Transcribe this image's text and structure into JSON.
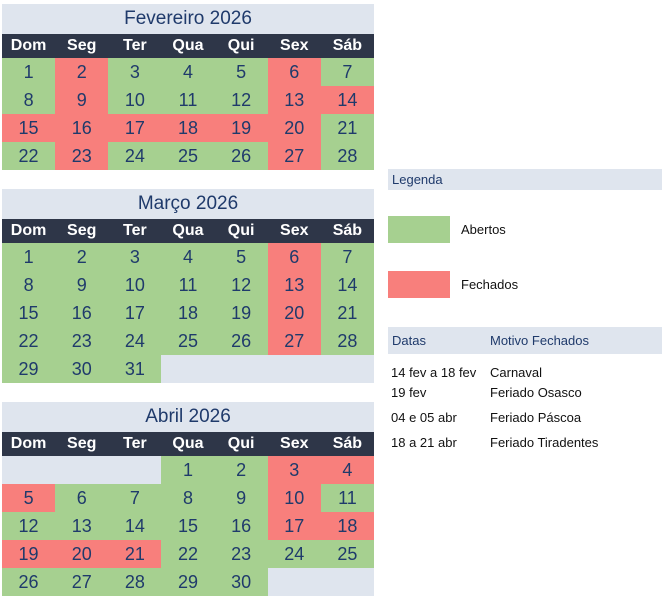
{
  "weekdays": [
    "Dom",
    "Seg",
    "Ter",
    "Qua",
    "Qui",
    "Sex",
    "Sáb"
  ],
  "colors": {
    "open": "#a6d090",
    "closed": "#f87f7c",
    "header_bg": "#2e3648",
    "title_bg": "#dfe5ee",
    "text": "#1f3a6b"
  },
  "calendars": [
    {
      "title": "Fevereiro 2026",
      "cells": [
        {
          "day": "1",
          "status": "open"
        },
        {
          "day": "2",
          "status": "closed"
        },
        {
          "day": "3",
          "status": "open"
        },
        {
          "day": "4",
          "status": "open"
        },
        {
          "day": "5",
          "status": "open"
        },
        {
          "day": "6",
          "status": "closed"
        },
        {
          "day": "7",
          "status": "open"
        },
        {
          "day": "8",
          "status": "open"
        },
        {
          "day": "9",
          "status": "closed"
        },
        {
          "day": "10",
          "status": "open"
        },
        {
          "day": "11",
          "status": "open"
        },
        {
          "day": "12",
          "status": "open"
        },
        {
          "day": "13",
          "status": "closed"
        },
        {
          "day": "14",
          "status": "closed"
        },
        {
          "day": "15",
          "status": "closed"
        },
        {
          "day": "16",
          "status": "closed"
        },
        {
          "day": "17",
          "status": "closed"
        },
        {
          "day": "18",
          "status": "closed"
        },
        {
          "day": "19",
          "status": "closed"
        },
        {
          "day": "20",
          "status": "closed"
        },
        {
          "day": "21",
          "status": "open"
        },
        {
          "day": "22",
          "status": "open"
        },
        {
          "day": "23",
          "status": "closed"
        },
        {
          "day": "24",
          "status": "open"
        },
        {
          "day": "25",
          "status": "open"
        },
        {
          "day": "26",
          "status": "open"
        },
        {
          "day": "27",
          "status": "closed"
        },
        {
          "day": "28",
          "status": "open"
        }
      ]
    },
    {
      "title": "Março 2026",
      "cells": [
        {
          "day": "1",
          "status": "open"
        },
        {
          "day": "2",
          "status": "open"
        },
        {
          "day": "3",
          "status": "open"
        },
        {
          "day": "4",
          "status": "open"
        },
        {
          "day": "5",
          "status": "open"
        },
        {
          "day": "6",
          "status": "closed"
        },
        {
          "day": "7",
          "status": "open"
        },
        {
          "day": "8",
          "status": "open"
        },
        {
          "day": "9",
          "status": "open"
        },
        {
          "day": "10",
          "status": "open"
        },
        {
          "day": "11",
          "status": "open"
        },
        {
          "day": "12",
          "status": "open"
        },
        {
          "day": "13",
          "status": "closed"
        },
        {
          "day": "14",
          "status": "open"
        },
        {
          "day": "15",
          "status": "open"
        },
        {
          "day": "16",
          "status": "open"
        },
        {
          "day": "17",
          "status": "open"
        },
        {
          "day": "18",
          "status": "open"
        },
        {
          "day": "19",
          "status": "open"
        },
        {
          "day": "20",
          "status": "closed"
        },
        {
          "day": "21",
          "status": "open"
        },
        {
          "day": "22",
          "status": "open"
        },
        {
          "day": "23",
          "status": "open"
        },
        {
          "day": "24",
          "status": "open"
        },
        {
          "day": "25",
          "status": "open"
        },
        {
          "day": "26",
          "status": "open"
        },
        {
          "day": "27",
          "status": "closed"
        },
        {
          "day": "28",
          "status": "open"
        },
        {
          "day": "29",
          "status": "open"
        },
        {
          "day": "30",
          "status": "open"
        },
        {
          "day": "31",
          "status": "open"
        },
        {
          "day": "",
          "status": "empty"
        },
        {
          "day": "",
          "status": "empty"
        },
        {
          "day": "",
          "status": "empty"
        },
        {
          "day": "",
          "status": "empty"
        }
      ]
    },
    {
      "title": "Abril 2026",
      "cells": [
        {
          "day": "",
          "status": "empty"
        },
        {
          "day": "",
          "status": "empty"
        },
        {
          "day": "",
          "status": "empty"
        },
        {
          "day": "1",
          "status": "open"
        },
        {
          "day": "2",
          "status": "open"
        },
        {
          "day": "3",
          "status": "closed"
        },
        {
          "day": "4",
          "status": "closed"
        },
        {
          "day": "5",
          "status": "closed"
        },
        {
          "day": "6",
          "status": "open"
        },
        {
          "day": "7",
          "status": "open"
        },
        {
          "day": "8",
          "status": "open"
        },
        {
          "day": "9",
          "status": "open"
        },
        {
          "day": "10",
          "status": "closed"
        },
        {
          "day": "11",
          "status": "open"
        },
        {
          "day": "12",
          "status": "open"
        },
        {
          "day": "13",
          "status": "open"
        },
        {
          "day": "14",
          "status": "open"
        },
        {
          "day": "15",
          "status": "open"
        },
        {
          "day": "16",
          "status": "open"
        },
        {
          "day": "17",
          "status": "closed"
        },
        {
          "day": "18",
          "status": "closed"
        },
        {
          "day": "19",
          "status": "closed"
        },
        {
          "day": "20",
          "status": "closed"
        },
        {
          "day": "21",
          "status": "closed"
        },
        {
          "day": "22",
          "status": "open"
        },
        {
          "day": "23",
          "status": "open"
        },
        {
          "day": "24",
          "status": "open"
        },
        {
          "day": "25",
          "status": "open"
        },
        {
          "day": "26",
          "status": "open"
        },
        {
          "day": "27",
          "status": "open"
        },
        {
          "day": "28",
          "status": "open"
        },
        {
          "day": "29",
          "status": "open"
        },
        {
          "day": "30",
          "status": "open"
        },
        {
          "day": "",
          "status": "empty"
        },
        {
          "day": "",
          "status": "empty"
        }
      ]
    }
  ],
  "legend": {
    "title": "Legenda",
    "open_label": "Abertos",
    "closed_label": "Fechados"
  },
  "reasons": {
    "header_dates": "Datas",
    "header_reason": "Motivo Fechados",
    "rows": [
      {
        "dates": "14 fev a 18 fev",
        "reason": "Carnaval"
      },
      {
        "dates": "19 fev",
        "reason": "Feriado Osasco"
      },
      {
        "dates": "04 e 05 abr",
        "reason": "Feriado Páscoa"
      },
      {
        "dates": "18 a 21 abr",
        "reason": "Feriado Tiradentes"
      }
    ]
  }
}
